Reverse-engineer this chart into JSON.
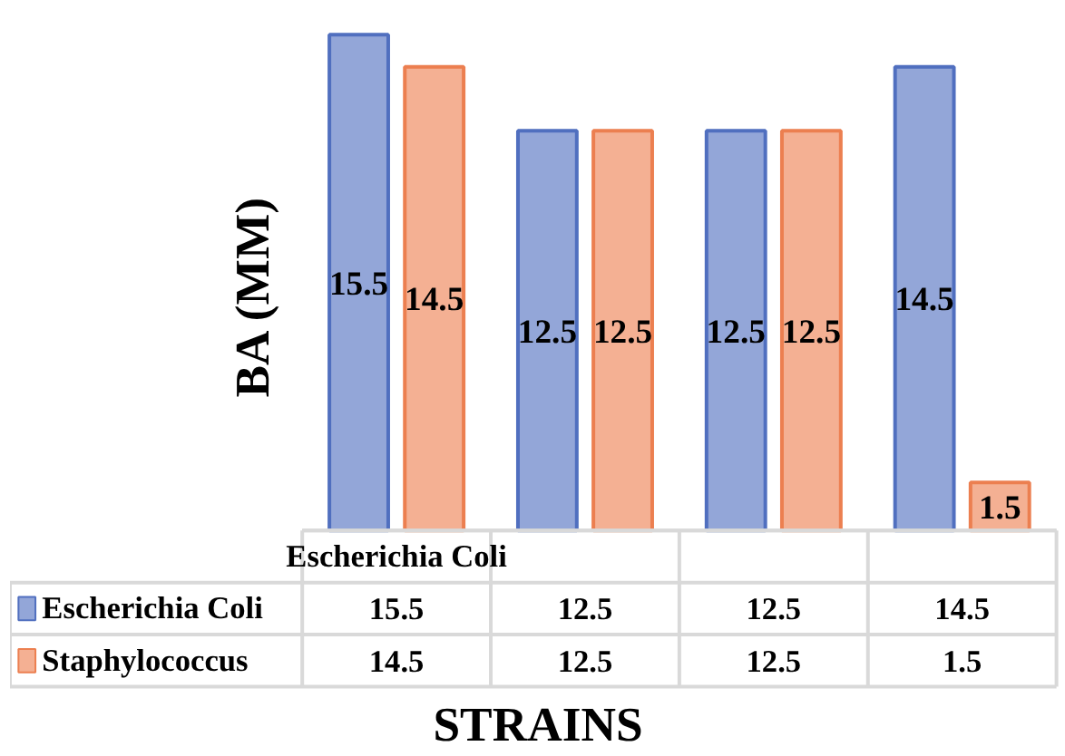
{
  "chart_data": {
    "type": "bar",
    "xlabel": "STRAINS",
    "ylabel": "BA (MM)",
    "categories": [
      "Escherichia Coli",
      null,
      null,
      null
    ],
    "series": [
      {
        "name": "Escherichia Coli",
        "color": "#93a6d8",
        "values": [
          15.5,
          12.5,
          12.5,
          14.5
        ]
      },
      {
        "name": "Staphylococcus",
        "color": "#f4b093",
        "values": [
          14.5,
          12.5,
          12.5,
          1.5
        ]
      }
    ],
    "annotations": [
      "15.5",
      "12.5",
      "12.5",
      "14.5",
      "14.5",
      "12.5",
      "12.5",
      "1.5"
    ],
    "data_labels": true,
    "legend": "bottom left"
  }
}
